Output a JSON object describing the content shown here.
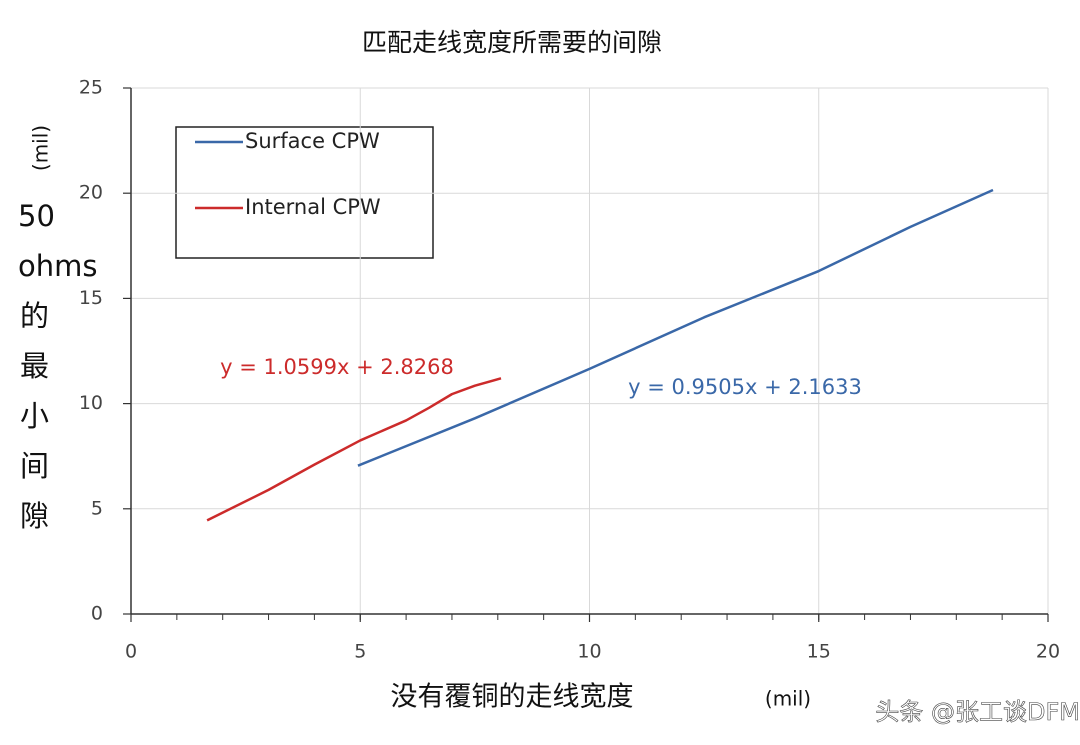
{
  "chart_data": {
    "type": "line",
    "title": "匹配走线宽度所需要的间隙",
    "x_label": "没有覆铜的走线宽度",
    "x_label_unit": "(mil)",
    "y_label_lines": [
      "50",
      "ohms",
      "的",
      "最",
      "小",
      "间",
      "隙"
    ],
    "y_label_unit": "(mil)",
    "watermark": "头条 @张工谈DFM",
    "xlim": [
      0,
      20
    ],
    "xticks": [
      0,
      5,
      10,
      15,
      20
    ],
    "ylim": [
      0,
      25
    ],
    "yticks": [
      0,
      5,
      10,
      15,
      20,
      25
    ],
    "grid": true,
    "legend": "upper left",
    "series": [
      {
        "name": "Surface CPW",
        "color": "#3a68a8",
        "x": [
          4.95,
          7.5,
          10,
          12.5,
          15,
          17,
          18.8
        ],
        "values": [
          7.05,
          9.3,
          11.65,
          14.1,
          16.3,
          18.4,
          20.15
        ],
        "equation": "y = 0.9505x + 2.1633"
      },
      {
        "name": "Internal CPW",
        "color": "#cc2b2b",
        "x": [
          1.66,
          3,
          4,
          5,
          6,
          6.5,
          7,
          7.5,
          8.07
        ],
        "values": [
          4.45,
          5.9,
          7.1,
          8.25,
          9.2,
          9.8,
          10.45,
          10.85,
          11.2
        ],
        "equation": "y = 1.0599x + 2.8268"
      }
    ]
  }
}
